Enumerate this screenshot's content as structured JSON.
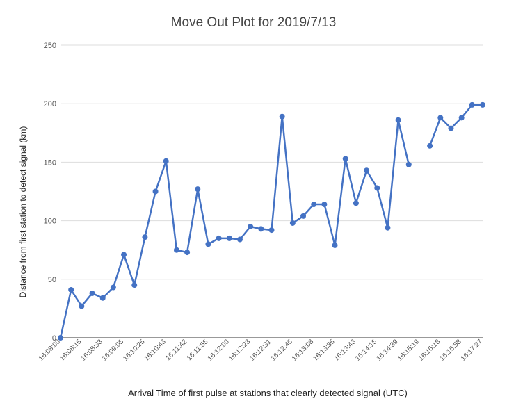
{
  "chart_data": {
    "type": "line",
    "title": "Move Out Plot for 2019/7/13",
    "xlabel": "Arrival Time of first pulse at stations that clearly detected signal (UTC)",
    "ylabel": "Distance from first station to detect signal (km)",
    "ylim": [
      0,
      250
    ],
    "yticks": [
      0,
      50,
      100,
      150,
      200,
      250
    ],
    "grid": true,
    "legend": "none",
    "color": "#4472c4",
    "x_tick_labels": [
      "16:08:00",
      "16:08:15",
      "16:08:33",
      "16:09:05",
      "16:10:25",
      "16:10:43",
      "16:11:42",
      "16:11:55",
      "16:12:00",
      "16:12:23",
      "16:12:31",
      "16:12:46",
      "16:13:08",
      "16:13:35",
      "16:13:43",
      "16:14:15",
      "16:14:39",
      "16:15:19",
      "16:16:18",
      "16:16:58",
      "16:17:27"
    ],
    "values": [
      0,
      41,
      27,
      38,
      34,
      43,
      71,
      45,
      86,
      125,
      151,
      75,
      73,
      127,
      80,
      85,
      85,
      84,
      95,
      93,
      92,
      189,
      98,
      104,
      114,
      114,
      79,
      153,
      115,
      143,
      128,
      94,
      186,
      148,
      null,
      164,
      188,
      179,
      188,
      199,
      199
    ]
  }
}
